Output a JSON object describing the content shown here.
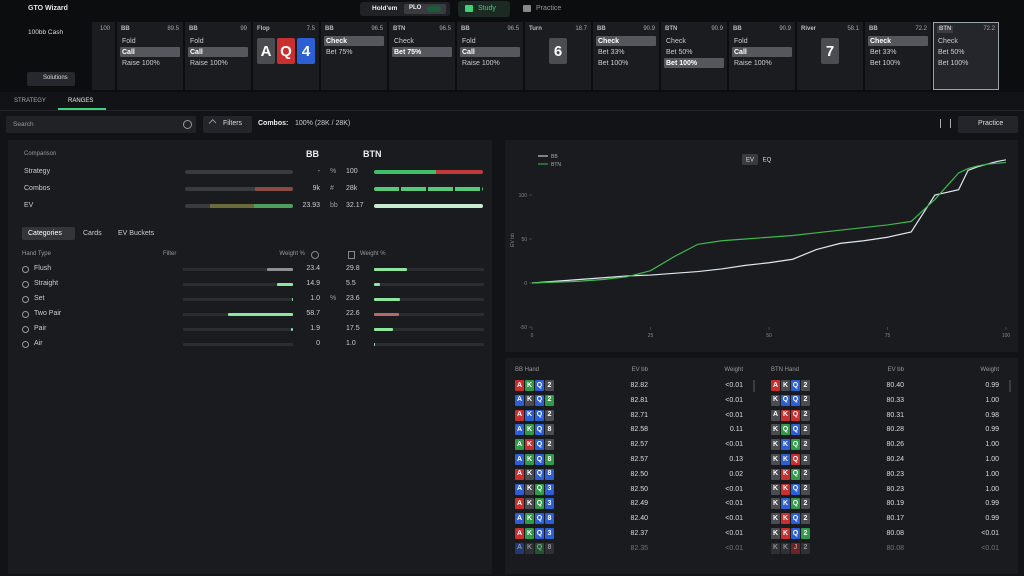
{
  "top_bar": {
    "brand": "GTO Wizard",
    "game": "Hold'em",
    "variant": "PLO",
    "tabs": [
      "Study",
      "Practice"
    ],
    "active_tab": 0
  },
  "sidebar": {
    "format": "100bb Cash",
    "button": "Solutions"
  },
  "action_strip": {
    "start": "100",
    "columns": [
      {
        "label": "BB",
        "amount": "89.5",
        "actions": [
          "Fold",
          "Call",
          "Raise 100%"
        ],
        "selected": 1
      },
      {
        "label": "BB",
        "amount": "99",
        "actions": [
          "Fold",
          "Call",
          "Raise 100%"
        ],
        "selected": 1
      },
      {
        "label": "Flop",
        "amount": "7.5",
        "cards": [
          {
            "rank": "A",
            "suit": "s"
          },
          {
            "rank": "Q",
            "suit": "h"
          },
          {
            "rank": "4",
            "suit": "d"
          }
        ]
      },
      {
        "label": "BB",
        "amount": "96.5",
        "actions": [
          "Check",
          "Bet 75%"
        ],
        "selected": 0
      },
      {
        "label": "BTN",
        "amount": "96.5",
        "actions": [
          "Check",
          "Bet 75%"
        ],
        "selected": 1
      },
      {
        "label": "BB",
        "amount": "96.5",
        "actions": [
          "Fold",
          "Call",
          "Raise 100%"
        ],
        "selected": 1
      },
      {
        "label": "Turn",
        "amount": "18.7",
        "cards": [
          {
            "rank": "6",
            "suit": "s"
          }
        ]
      },
      {
        "label": "BB",
        "amount": "90.9",
        "actions": [
          "Check",
          "Bet 33%",
          "Bet 100%"
        ],
        "selected": 0
      },
      {
        "label": "BTN",
        "amount": "90.9",
        "actions": [
          "Check",
          "Bet 50%",
          "Bet 100%"
        ],
        "selected": 2
      },
      {
        "label": "BB",
        "amount": "90.9",
        "actions": [
          "Fold",
          "Call",
          "Raise 100%"
        ],
        "selected": 1
      },
      {
        "label": "River",
        "amount": "58.1",
        "cards": [
          {
            "rank": "7",
            "suit": "s"
          }
        ]
      },
      {
        "label": "BB",
        "amount": "72.2",
        "actions": [
          "Check",
          "Bet 33%",
          "Bet 100%"
        ],
        "selected": 0
      },
      {
        "label": "BTN",
        "amount": "72.2",
        "actions": [
          "Check",
          "Bet 50%",
          "Bet 100%"
        ],
        "active": true
      }
    ]
  },
  "view_tabs": [
    "STRATEGY",
    "RANGES"
  ],
  "active_view": 1,
  "toolbar": {
    "search": "Search",
    "filters": "Filters",
    "combos_label": "Combos:",
    "combos": "100% (28K / 28K)",
    "practice": "Practice"
  },
  "comparison": {
    "title": "Comparison",
    "players": [
      "BB",
      "BTN"
    ],
    "rows": [
      {
        "label": "Strategy",
        "bb": "-",
        "unit": "%",
        "btn": "100"
      },
      {
        "label": "Combos",
        "bb": "9k",
        "unit": "#",
        "btn": "28k"
      },
      {
        "label": "EV",
        "bb": "23.93",
        "unit": "bb",
        "btn": "32.17"
      }
    ]
  },
  "categories": {
    "tabs": [
      "Categories",
      "Cards",
      "EV Buckets"
    ],
    "active_tab": 0,
    "header": {
      "hand_type": "Hand Type",
      "filter": "Filter",
      "weight_bb": "Weight %",
      "weight_btn": "Weight %"
    },
    "rows": [
      {
        "name": "Flush",
        "bb": 23.4,
        "btn": 29.8,
        "bb_color": "#8d8f94",
        "btn_color": "#8ee59f"
      },
      {
        "name": "Straight",
        "bb": 14.9,
        "btn": 5.5,
        "bb_color": "#8ee59f",
        "btn_color": "#8ee59f"
      },
      {
        "name": "Set",
        "bb": {
          "value": 1,
          "label": "1.0"
        },
        "unit": "%",
        "btn": 23.6,
        "bb_color": "#8ee59f",
        "btn_color": "#8ee59f"
      },
      {
        "name": "Two Pair",
        "bb": 58.7,
        "btn": 22.6,
        "bb_color": "#8ee59f",
        "btn_color": "#b46a66"
      },
      {
        "name": "Pair",
        "bb": 1.9,
        "btn": 17.5,
        "bb_color": "#8ee59f",
        "btn_color": "#8ee59f"
      },
      {
        "name": "Air",
        "bb": 0,
        "btn": {
          "value": 1,
          "label": "1.0"
        },
        "bb_color": "#8ee59f",
        "btn_color": "#8ee59f"
      }
    ]
  },
  "chart_data": {
    "type": "line",
    "y_label": "EV bb",
    "toggles": [
      "EV",
      "EQ"
    ],
    "active_toggle": 0,
    "x": [
      0,
      5,
      10,
      15,
      20,
      25,
      30,
      35,
      40,
      45,
      50,
      55,
      60,
      65,
      70,
      75,
      80,
      85,
      90,
      92,
      94,
      96,
      98,
      100
    ],
    "series": [
      {
        "name": "BB",
        "color": "#dfe8f1",
        "values": [
          0,
          2,
          4,
          6,
          8,
          9,
          11,
          13,
          16,
          20,
          23,
          27,
          38,
          45,
          48,
          52,
          58,
          100,
          106,
          128,
          132,
          135,
          138,
          140
        ]
      },
      {
        "name": "BTN",
        "color": "#3fb950",
        "values": [
          0,
          1,
          2,
          4,
          7,
          14,
          30,
          44,
          48,
          50,
          52,
          54,
          57,
          60,
          63,
          66,
          70,
          95,
          125,
          130,
          133,
          135,
          136,
          137
        ]
      }
    ],
    "xlim": [
      0,
      100
    ],
    "xticks": [
      0,
      25,
      50,
      75,
      100
    ],
    "ylim": [
      -50,
      150
    ],
    "yticks": [
      -50,
      0,
      50,
      100
    ]
  },
  "hands": {
    "bb": {
      "header": {
        "hand": "BB Hand",
        "ev": "EV bb",
        "weight": "Weight"
      },
      "rows": [
        {
          "cards": [
            "A",
            "K",
            "Q",
            "2"
          ],
          "suits": "hcds",
          "ev": "82.82",
          "weight": "<0.01"
        },
        {
          "cards": [
            "A",
            "K",
            "Q",
            "2"
          ],
          "suits": "dsdc",
          "ev": "82.81",
          "weight": "<0.01"
        },
        {
          "cards": [
            "A",
            "K",
            "Q",
            "2"
          ],
          "suits": "hdds",
          "ev": "82.71",
          "weight": "<0.01"
        },
        {
          "cards": [
            "A",
            "K",
            "Q",
            "8"
          ],
          "suits": "dcds",
          "ev": "82.58",
          "weight": "0.11"
        },
        {
          "cards": [
            "A",
            "K",
            "Q",
            "2"
          ],
          "suits": "chds",
          "ev": "82.57",
          "weight": "<0.01"
        },
        {
          "cards": [
            "A",
            "K",
            "Q",
            "8"
          ],
          "suits": "dcdc",
          "ev": "82.57",
          "weight": "0.13"
        },
        {
          "cards": [
            "A",
            "K",
            "Q",
            "8"
          ],
          "suits": "hsdd",
          "ev": "82.50",
          "weight": "0.02"
        },
        {
          "cards": [
            "A",
            "K",
            "Q",
            "3"
          ],
          "suits": "dscd",
          "ev": "82.50",
          "weight": "<0.01"
        },
        {
          "cards": [
            "A",
            "K",
            "Q",
            "3"
          ],
          "suits": "hscd",
          "ev": "82.49",
          "weight": "<0.01"
        },
        {
          "cards": [
            "A",
            "K",
            "Q",
            "8"
          ],
          "suits": "dcdd",
          "ev": "82.40",
          "weight": "<0.01"
        },
        {
          "cards": [
            "A",
            "K",
            "Q",
            "3"
          ],
          "suits": "hcdd",
          "ev": "82.37",
          "weight": "<0.01"
        },
        {
          "cards": [
            "A",
            "K",
            "Q",
            "8"
          ],
          "suits": "dscs",
          "ev": "82.35",
          "weight": "<0.01"
        }
      ]
    },
    "btn": {
      "header": {
        "hand": "BTN Hand",
        "ev": "EV bb",
        "weight": "Weight"
      },
      "rows": [
        {
          "cards": [
            "A",
            "K",
            "Q",
            "2"
          ],
          "suits": "hsds",
          "ev": "80.40",
          "weight": "0.99"
        },
        {
          "cards": [
            "K",
            "Q",
            "Q",
            "2"
          ],
          "suits": "sdds",
          "ev": "80.33",
          "weight": "1.00"
        },
        {
          "cards": [
            "A",
            "K",
            "Q",
            "2"
          ],
          "suits": "shhs",
          "ev": "80.31",
          "weight": "0.98"
        },
        {
          "cards": [
            "K",
            "Q",
            "Q",
            "2"
          ],
          "suits": "scds",
          "ev": "80.28",
          "weight": "0.99"
        },
        {
          "cards": [
            "K",
            "K",
            "Q",
            "2"
          ],
          "suits": "sdcs",
          "ev": "80.26",
          "weight": "1.00"
        },
        {
          "cards": [
            "K",
            "K",
            "Q",
            "2"
          ],
          "suits": "sdhs",
          "ev": "80.24",
          "weight": "1.00"
        },
        {
          "cards": [
            "K",
            "K",
            "Q",
            "2"
          ],
          "suits": "shcs",
          "ev": "80.23",
          "weight": "1.00"
        },
        {
          "cards": [
            "K",
            "K",
            "Q",
            "2"
          ],
          "suits": "shds",
          "ev": "80.23",
          "weight": "1.00"
        },
        {
          "cards": [
            "K",
            "K",
            "Q",
            "2"
          ],
          "suits": "sdcs",
          "ev": "80.19",
          "weight": "0.99"
        },
        {
          "cards": [
            "K",
            "K",
            "Q",
            "2"
          ],
          "suits": "shds",
          "ev": "80.17",
          "weight": "0.99"
        },
        {
          "cards": [
            "K",
            "K",
            "Q",
            "2"
          ],
          "suits": "shdc",
          "ev": "80.08",
          "weight": "<0.01"
        },
        {
          "cards": [
            "K",
            "K",
            "J",
            "2"
          ],
          "suits": "sshs",
          "ev": "80.08",
          "weight": "<0.01"
        }
      ]
    }
  }
}
